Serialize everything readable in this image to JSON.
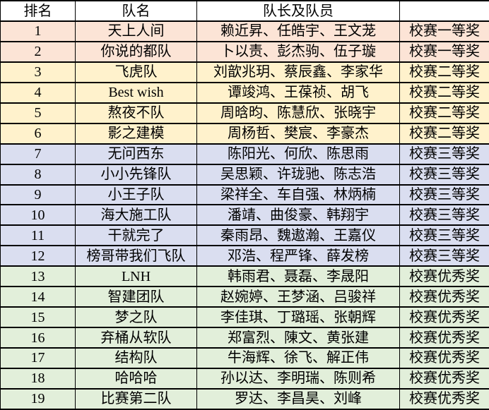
{
  "table": {
    "headers": [
      "排名",
      "队名",
      "队长及队员",
      ""
    ],
    "tier_colors": {
      "first": "#FCE4D6",
      "second": "#FFF2CC",
      "third": "#DADEF0",
      "excellent": "#E2EFDA"
    },
    "rows": [
      {
        "rank": "1",
        "team": "天上人间",
        "members": "赖近昇、任皓宇、王文茏",
        "award": "校赛一等奖",
        "tier": "first"
      },
      {
        "rank": "2",
        "team": "你说的都队",
        "members": "卜以责、彭杰驹、伍子璇",
        "award": "校赛一等奖",
        "tier": "first"
      },
      {
        "rank": "3",
        "team": "飞虎队",
        "members": "刘歆兆玥、蔡辰鑫、李家华",
        "award": "校赛二等奖",
        "tier": "second"
      },
      {
        "rank": "4",
        "team": "Best wish",
        "members": "谭竣鸿、王葆祯、胡飞",
        "award": "校赛二等奖",
        "tier": "second"
      },
      {
        "rank": "5",
        "team": "熬夜不队",
        "members": "周晗昀、陈慧欣、张晓宇",
        "award": "校赛二等奖",
        "tier": "second"
      },
      {
        "rank": "6",
        "team": "影之建模",
        "members": "周杨哲、樊宸、李豪杰",
        "award": "校赛二等奖",
        "tier": "second"
      },
      {
        "rank": "7",
        "team": "无问西东",
        "members": "陈阳光、何欣、陈思雨",
        "award": "校赛三等奖",
        "tier": "third"
      },
      {
        "rank": "8",
        "team": "小小先锋队",
        "members": "吴思颖、许珑驰、陈志浩",
        "award": "校赛三等奖",
        "tier": "third"
      },
      {
        "rank": "9",
        "team": "小王子队",
        "members": "梁祥全、车自强、林炳楠",
        "award": "校赛三等奖",
        "tier": "third"
      },
      {
        "rank": "10",
        "team": "海大施工队",
        "members": "潘靖、曲俊豪、韩翔宇",
        "award": "校赛三等奖",
        "tier": "third"
      },
      {
        "rank": "11",
        "team": "干就完了",
        "members": "秦雨昂、魏遨瀚、王嘉仪",
        "award": "校赛三等奖",
        "tier": "third"
      },
      {
        "rank": "12",
        "team": "榜哥带我们飞队",
        "members": "邓浩、程严锋、薛发榜",
        "award": "校赛三等奖",
        "tier": "third"
      },
      {
        "rank": "13",
        "team": "LNH",
        "members": "韩雨君、聂磊、李晟阳",
        "award": "校赛优秀奖",
        "tier": "excellent"
      },
      {
        "rank": "14",
        "team": "智建团队",
        "members": "赵婉婷、王梦涵、吕骏祥",
        "award": "校赛优秀奖",
        "tier": "excellent"
      },
      {
        "rank": "15",
        "team": "梦之队",
        "members": "李佳琪、丁璐瑶、张朝辉",
        "award": "校赛优秀奖",
        "tier": "excellent"
      },
      {
        "rank": "16",
        "team": "弃桶从软队",
        "members": "郑富烈、陳文、黄张建",
        "award": "校赛优秀奖",
        "tier": "excellent"
      },
      {
        "rank": "17",
        "team": "结构队",
        "members": "牛海辉、徐飞、解正伟",
        "award": "校赛优秀奖",
        "tier": "excellent"
      },
      {
        "rank": "18",
        "team": "哈哈哈",
        "members": "孙以达、李明瑞、陈则希",
        "award": "校赛优秀奖",
        "tier": "excellent"
      },
      {
        "rank": "19",
        "team": "比赛第二队",
        "members": "罗达、李昌昊、刘峰",
        "award": "校赛优秀奖",
        "tier": "excellent"
      }
    ]
  }
}
